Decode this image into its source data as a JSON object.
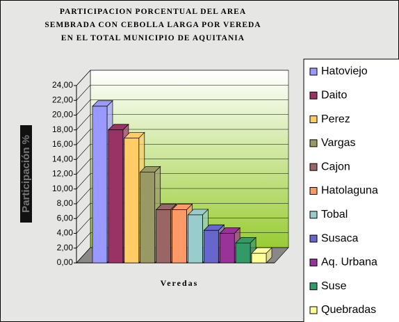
{
  "chart_data": {
    "type": "bar3d",
    "title": "PARTICIPACION PORCENTUAL DEL AREA SEMBRADA CON CEBOLLA LARGA POR VEREDA EN EL TOTAL MUNICIPIO  DE AQUITANIA",
    "x_label": "Veredas",
    "y_label": "Participación %",
    "categories": [
      "Hatoviejo",
      "Daito",
      "Perez",
      "Vargas",
      "Cajon",
      "Hatolaguna",
      "Tobal",
      "Susaca",
      "Aq. Urbana",
      "Suse",
      "Quebradas"
    ],
    "values": [
      21.2,
      18.0,
      16.9,
      12.3,
      7.2,
      7.2,
      6.5,
      4.4,
      4.0,
      2.7,
      1.3
    ],
    "colors": [
      "#9999ff",
      "#993366",
      "#ffcc66",
      "#999966",
      "#996666",
      "#ff9966",
      "#99cccc",
      "#6666cc",
      "#993399",
      "#339966",
      "#ffff99"
    ],
    "ylim": [
      0,
      24
    ],
    "yticks": [
      {
        "value": 0,
        "label": "0,00"
      },
      {
        "value": 2,
        "label": "2,00"
      },
      {
        "value": 4,
        "label": "4,00"
      },
      {
        "value": 6,
        "label": "6,00"
      },
      {
        "value": 8,
        "label": "8,00"
      },
      {
        "value": 10,
        "label": "10,00"
      },
      {
        "value": 12,
        "label": "12,00"
      },
      {
        "value": 14,
        "label": "14,00"
      },
      {
        "value": 16,
        "label": "16,00"
      },
      {
        "value": 18,
        "label": "18,00"
      },
      {
        "value": 20,
        "label": "20,00"
      },
      {
        "value": 22,
        "label": "22,00"
      },
      {
        "value": 24,
        "label": "24,00"
      }
    ],
    "grid": true,
    "legend": "right"
  }
}
